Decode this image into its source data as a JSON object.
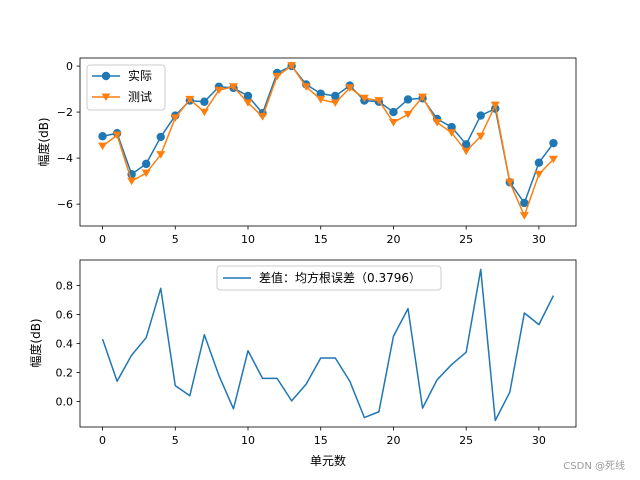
{
  "chart_data": [
    {
      "type": "line",
      "ylabel": "幅度(dB)",
      "xlim": [
        -1.55,
        32.55
      ],
      "ylim": [
        -6.95,
        0.35
      ],
      "xticks": [
        0,
        5,
        10,
        15,
        20,
        25,
        30
      ],
      "yticks": [
        0,
        -2,
        -4,
        -6
      ],
      "legend_position": "top-left",
      "series": [
        {
          "name": "实际",
          "color": "#1f77b4",
          "marker": "circle",
          "x": [
            0,
            1,
            2,
            3,
            4,
            5,
            6,
            7,
            8,
            9,
            10,
            11,
            12,
            13,
            14,
            15,
            16,
            17,
            18,
            19,
            20,
            21,
            22,
            23,
            24,
            25,
            26,
            27,
            28,
            29,
            30,
            31
          ],
          "values": [
            -3.05,
            -2.92,
            -4.7,
            -4.25,
            -3.08,
            -2.15,
            -1.5,
            -1.55,
            -0.9,
            -0.95,
            -1.3,
            -2.05,
            -0.3,
            0.0,
            -0.8,
            -1.2,
            -1.3,
            -0.85,
            -1.5,
            -1.55,
            -2.0,
            -1.45,
            -1.4,
            -2.3,
            -2.65,
            -3.4,
            -2.15,
            -1.85,
            -5.05,
            -5.95,
            -4.2,
            -3.35
          ]
        },
        {
          "name": "测试",
          "color": "#ff7f0e",
          "marker": "triangle-down",
          "x": [
            0,
            1,
            2,
            3,
            4,
            5,
            6,
            7,
            8,
            9,
            10,
            11,
            12,
            13,
            14,
            15,
            16,
            17,
            18,
            19,
            20,
            21,
            22,
            23,
            24,
            25,
            26,
            27,
            28,
            29,
            30,
            31
          ],
          "values": [
            -3.48,
            -3.0,
            -5.0,
            -4.65,
            -3.85,
            -2.25,
            -1.45,
            -2.0,
            -1.05,
            -0.9,
            -1.6,
            -2.2,
            -0.45,
            0.02,
            -0.9,
            -1.45,
            -1.6,
            -0.95,
            -1.4,
            -1.5,
            -2.45,
            -2.1,
            -1.35,
            -2.45,
            -2.9,
            -3.7,
            -3.05,
            -1.7,
            -5.05,
            -6.5,
            -4.7,
            -4.05
          ]
        }
      ]
    },
    {
      "type": "line",
      "xlabel": "单元数",
      "ylabel": "幅度(dB)",
      "xlim": [
        -1.55,
        32.55
      ],
      "ylim": [
        -0.175,
        0.975
      ],
      "xticks": [
        0,
        5,
        10,
        15,
        20,
        25,
        30
      ],
      "yticks": [
        0.0,
        0.2,
        0.4,
        0.6,
        0.8
      ],
      "legend_position": "top-center",
      "series": [
        {
          "name": "差值：均方根误差（0.3796）",
          "color": "#1f77b4",
          "marker": "none",
          "x": [
            0,
            1,
            2,
            3,
            4,
            5,
            6,
            7,
            8,
            9,
            10,
            11,
            12,
            13,
            14,
            15,
            16,
            17,
            18,
            19,
            20,
            21,
            22,
            23,
            24,
            25,
            26,
            27,
            28,
            29,
            30,
            31
          ],
          "values": [
            0.43,
            0.14,
            0.32,
            0.44,
            0.78,
            0.11,
            0.04,
            0.46,
            0.18,
            -0.05,
            0.35,
            0.16,
            0.16,
            0.005,
            0.12,
            0.3,
            0.3,
            0.14,
            -0.11,
            -0.07,
            0.45,
            0.64,
            -0.045,
            0.15,
            0.255,
            0.34,
            0.91,
            -0.13,
            0.065,
            0.61,
            0.53,
            0.73
          ]
        }
      ]
    }
  ],
  "watermark": "CSDN @死线"
}
